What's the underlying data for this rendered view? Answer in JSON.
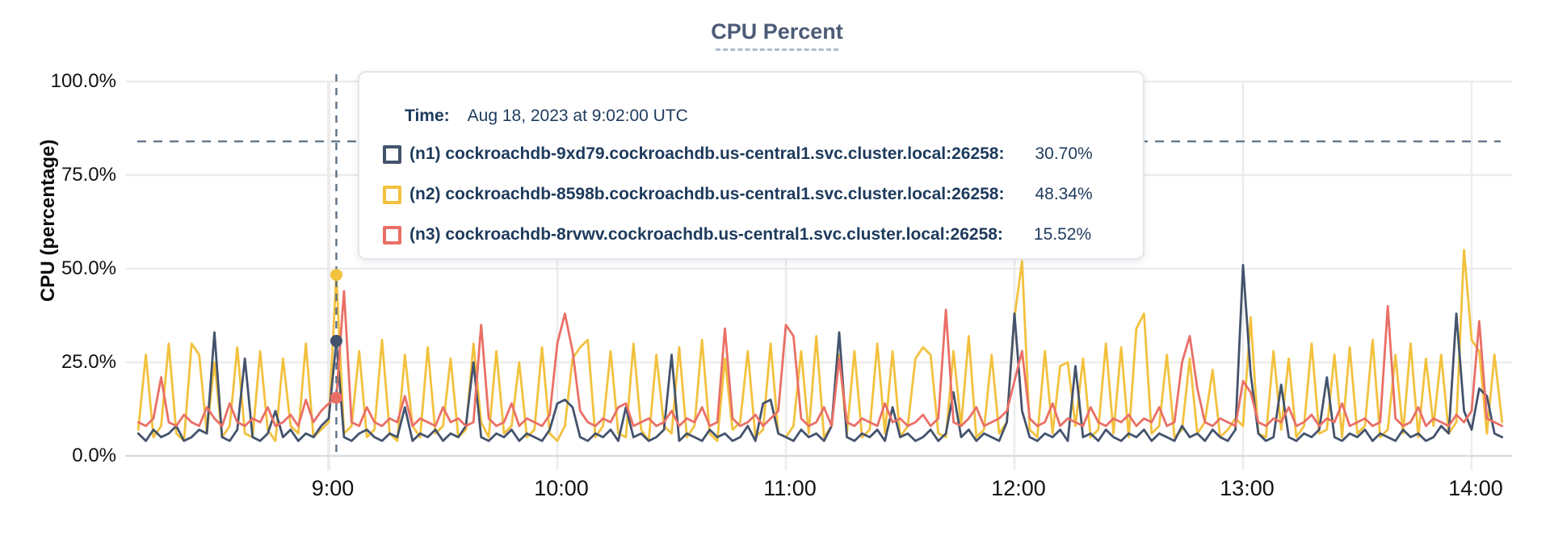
{
  "chart_data": {
    "type": "line",
    "title": "CPU Percent",
    "y_axis_title": "CPU (percentage)",
    "ylim": [
      0,
      100
    ],
    "grid": true,
    "yticks": [
      {
        "value": 100,
        "label": "100.0%"
      },
      {
        "value": 75,
        "label": "75.0%"
      },
      {
        "value": 50,
        "label": "50.0%"
      },
      {
        "value": 25,
        "label": "25.0%"
      },
      {
        "value": 0,
        "label": "0.0%"
      }
    ],
    "xticks": [
      {
        "t": 540,
        "label": "9:00"
      },
      {
        "t": 600,
        "label": "10:00"
      },
      {
        "t": 660,
        "label": "11:00"
      },
      {
        "t": 720,
        "label": "12:00"
      },
      {
        "t": 780,
        "label": "13:00"
      },
      {
        "t": 840,
        "label": "14:00"
      }
    ],
    "threshold_value": 84,
    "t0_minutes": 490,
    "dt_minutes": 2,
    "series": [
      {
        "name": "(n1) cockroachdb-9xd79.cockroachdb.us-central1.svc.cluster.local:26258",
        "short": "n1",
        "color": "#44536d",
        "values": [
          6,
          4,
          7,
          5,
          6,
          8,
          4,
          5,
          7,
          6,
          33,
          5,
          4,
          7,
          26,
          5,
          4,
          6,
          12,
          5,
          7,
          4,
          6,
          5,
          8,
          10,
          30.7,
          5,
          4,
          6,
          7,
          5,
          4,
          6,
          5,
          13,
          4,
          6,
          5,
          7,
          4,
          6,
          5,
          8,
          25,
          5,
          4,
          6,
          5,
          7,
          4,
          6,
          5,
          4,
          7,
          14,
          15,
          13,
          5,
          4,
          6,
          5,
          7,
          4,
          13,
          5,
          6,
          4,
          5,
          7,
          27,
          4,
          6,
          5,
          4,
          7,
          5,
          6,
          4,
          5,
          8,
          4,
          14,
          15,
          6,
          5,
          4,
          7,
          5,
          6,
          4,
          8,
          33,
          5,
          4,
          6,
          5,
          7,
          4,
          13,
          5,
          6,
          4,
          5,
          7,
          4,
          6,
          17,
          5,
          7,
          4,
          6,
          5,
          4,
          9,
          38,
          12,
          5,
          4,
          6,
          5,
          7,
          4,
          24,
          5,
          6,
          4,
          7,
          5,
          4,
          6,
          5,
          7,
          4,
          6,
          5,
          4,
          8,
          5,
          6,
          4,
          7,
          5,
          4,
          7,
          51,
          22,
          6,
          4,
          5,
          19,
          5,
          4,
          6,
          5,
          7,
          21,
          5,
          4,
          6,
          5,
          7,
          4,
          6,
          5,
          4,
          7,
          5,
          6,
          4,
          5,
          8,
          6,
          38,
          12,
          7,
          18,
          16,
          6,
          5
        ]
      },
      {
        "name": "(n2) cockroachdb-8598b.cockroachdb.us-central1.svc.cluster.local:26258",
        "short": "n2",
        "color": "#f2c13e",
        "values": [
          7,
          27,
          5,
          8,
          30,
          6,
          4,
          30,
          27,
          6,
          25,
          5,
          8,
          29,
          6,
          5,
          28,
          7,
          4,
          26,
          8,
          6,
          30,
          5,
          7,
          9,
          48.34,
          6,
          8,
          28,
          5,
          7,
          31,
          6,
          4,
          27,
          8,
          5,
          29,
          6,
          8,
          26,
          5,
          7,
          30,
          9,
          5,
          28,
          6,
          8,
          25,
          5,
          7,
          29,
          6,
          4,
          8,
          26,
          29,
          31,
          5,
          8,
          28,
          6,
          5,
          30,
          7,
          4,
          27,
          8,
          6,
          29,
          5,
          8,
          31,
          6,
          4,
          26,
          7,
          9,
          28,
          5,
          7,
          30,
          6,
          5,
          8,
          28,
          6,
          32,
          5,
          8,
          27,
          6,
          28,
          5,
          7,
          30,
          6,
          28,
          5,
          8,
          26,
          29,
          27,
          6,
          5,
          28,
          8,
          32,
          5,
          7,
          27,
          6,
          9,
          37,
          52,
          7,
          5,
          28,
          6,
          24,
          25,
          8,
          26,
          5,
          7,
          30,
          6,
          29,
          5,
          34,
          38,
          6,
          8,
          27,
          5,
          7,
          26,
          6,
          9,
          23,
          5,
          7,
          10,
          8,
          37,
          6,
          5,
          28,
          7,
          26,
          5,
          8,
          30,
          6,
          7,
          27,
          5,
          29,
          6,
          8,
          31,
          5,
          7,
          27,
          6,
          30,
          5,
          26,
          8,
          27,
          6,
          9,
          55,
          31,
          28,
          6,
          27,
          9
        ]
      },
      {
        "name": "(n3) cockroachdb-8rvwv.cockroachdb.us-central1.svc.cluster.local:26258",
        "short": "n3",
        "color": "#e96f66",
        "values": [
          9,
          8,
          10,
          21,
          9,
          8,
          11,
          9,
          8,
          13,
          10,
          8,
          14,
          9,
          8,
          10,
          9,
          13,
          8,
          9,
          11,
          8,
          15,
          9,
          12,
          14,
          15.52,
          44,
          9,
          8,
          13,
          9,
          8,
          10,
          9,
          16,
          8,
          10,
          9,
          8,
          13,
          9,
          10,
          8,
          9,
          35,
          10,
          8,
          9,
          14,
          8,
          10,
          9,
          8,
          11,
          30,
          38,
          28,
          12,
          9,
          8,
          10,
          9,
          13,
          14,
          8,
          9,
          10,
          8,
          9,
          12,
          8,
          10,
          9,
          13,
          8,
          9,
          34,
          10,
          8,
          9,
          11,
          8,
          10,
          12,
          35,
          32,
          10,
          8,
          9,
          13,
          8,
          26,
          9,
          8,
          10,
          9,
          8,
          14,
          9,
          10,
          8,
          9,
          11,
          8,
          10,
          39,
          9,
          8,
          10,
          13,
          8,
          9,
          10,
          12,
          20,
          28,
          10,
          8,
          9,
          14,
          8,
          10,
          9,
          8,
          13,
          9,
          8,
          10,
          9,
          11,
          8,
          10,
          9,
          13,
          8,
          9,
          25,
          32,
          18,
          9,
          8,
          10,
          9,
          8,
          20,
          17,
          9,
          8,
          10,
          9,
          13,
          8,
          9,
          11,
          8,
          10,
          9,
          14,
          8,
          9,
          10,
          8,
          9,
          40,
          10,
          8,
          9,
          13,
          8,
          10,
          9,
          8,
          11,
          9,
          12,
          36,
          10,
          9,
          8
        ]
      }
    ],
    "hover": {
      "time_minutes": 542,
      "values": [
        30.7,
        48.34,
        15.52
      ]
    }
  },
  "tooltip": {
    "time_label": "Time:",
    "time_value": "Aug 18, 2023 at 9:02:00 UTC",
    "rows": [
      {
        "label": "(n1) cockroachdb-9xd79.cockroachdb.us-central1.svc.cluster.local:26258:",
        "value": "30.70%",
        "color": "#44536d"
      },
      {
        "label": "(n2) cockroachdb-8598b.cockroachdb.us-central1.svc.cluster.local:26258:",
        "value": "48.34%",
        "color": "#f2c13e"
      },
      {
        "label": "(n3) cockroachdb-8rvwv.cockroachdb.us-central1.svc.cluster.local:26258:",
        "value": "15.52%",
        "color": "#e96f66"
      }
    ]
  },
  "colors": {
    "grid": "#ececec",
    "axis_baseline": "#dcdcdc",
    "dashed_guides": "#5c7186",
    "title": "#4c5b76",
    "tooltip_text": "#1d3a5c"
  }
}
